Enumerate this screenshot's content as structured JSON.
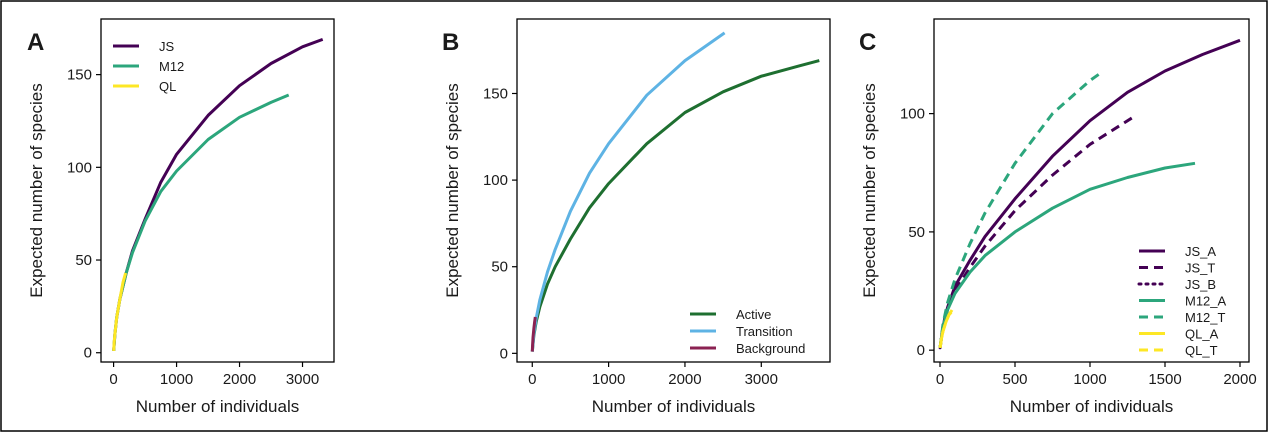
{
  "chart_data": [
    {
      "type": "line",
      "panel_label": "A",
      "xlabel": "Number of individuals",
      "ylabel": "Expected number of species",
      "xlim": [
        -200,
        3500
      ],
      "ylim": [
        -5,
        180
      ],
      "xticks": [
        0,
        1000,
        2000,
        3000
      ],
      "yticks": [
        0,
        50,
        100,
        150
      ],
      "grid": false,
      "legend_position": "top-left",
      "series": [
        {
          "name": "JS",
          "color": "#440154",
          "dash": "solid",
          "x": [
            1,
            20,
            50,
            100,
            200,
            300,
            500,
            750,
            1000,
            1500,
            2000,
            2500,
            3000,
            3320
          ],
          "y": [
            1,
            10,
            19,
            29,
            43,
            55,
            72,
            92,
            107,
            128,
            144,
            156,
            165,
            169
          ]
        },
        {
          "name": "M12",
          "color": "#2ca67c",
          "dash": "solid",
          "x": [
            1,
            20,
            50,
            100,
            200,
            300,
            500,
            750,
            1000,
            1500,
            2000,
            2500,
            2780
          ],
          "y": [
            1,
            10,
            19,
            29,
            43,
            54,
            71,
            87,
            98,
            115,
            127,
            135,
            139
          ]
        },
        {
          "name": "QL",
          "color": "#fde725",
          "dash": "solid",
          "x": [
            1,
            10,
            20,
            50,
            100,
            150,
            190
          ],
          "y": [
            1,
            6,
            10,
            19,
            29,
            38,
            43
          ]
        }
      ]
    },
    {
      "type": "line",
      "panel_label": "B",
      "xlabel": "Number of individuals",
      "ylabel": "Expected number of species",
      "xlim": [
        -200,
        3900
      ],
      "ylim": [
        -5,
        193
      ],
      "xticks": [
        0,
        1000,
        2000,
        3000
      ],
      "yticks": [
        0,
        50,
        100,
        150
      ],
      "grid": false,
      "legend_position": "bottom-right",
      "series": [
        {
          "name": "Active",
          "color": "#1e6f30",
          "dash": "solid",
          "x": [
            1,
            20,
            50,
            100,
            200,
            300,
            500,
            750,
            1000,
            1500,
            2000,
            2500,
            3000,
            3500,
            3760
          ],
          "y": [
            1,
            10,
            18,
            27,
            40,
            50,
            66,
            84,
            98,
            121,
            139,
            151,
            160,
            166,
            169
          ]
        },
        {
          "name": "Transition",
          "color": "#5eb3e4",
          "dash": "solid",
          "x": [
            1,
            20,
            50,
            100,
            200,
            300,
            500,
            750,
            1000,
            1500,
            2000,
            2520
          ],
          "y": [
            1,
            11,
            20,
            31,
            47,
            60,
            82,
            104,
            121,
            149,
            169,
            185
          ]
        },
        {
          "name": "Background",
          "color": "#8b2252",
          "dash": "solid",
          "x": [
            1,
            5,
            10,
            20,
            30,
            40
          ],
          "y": [
            1,
            5,
            9,
            14,
            18,
            21
          ]
        }
      ]
    },
    {
      "type": "line",
      "panel_label": "C",
      "xlabel": "Number of individuals",
      "ylabel": "Expected number of species",
      "xlim": [
        -40,
        2060
      ],
      "ylim": [
        -5,
        140
      ],
      "xticks": [
        0,
        500,
        1000,
        1500,
        2000
      ],
      "yticks": [
        0,
        50,
        100
      ],
      "grid": false,
      "legend_position": "bottom-right",
      "series": [
        {
          "name": "JS_A",
          "color": "#440154",
          "dash": "solid",
          "x": [
            1,
            20,
            50,
            100,
            200,
            300,
            500,
            750,
            1000,
            1250,
            1500,
            1750,
            2000
          ],
          "y": [
            1,
            10,
            18,
            27,
            38,
            48,
            64,
            82,
            97,
            109,
            118,
            125,
            131
          ]
        },
        {
          "name": "JS_T",
          "color": "#440154",
          "dash": "dash",
          "x": [
            1,
            20,
            50,
            100,
            200,
            300,
            500,
            750,
            1000,
            1300
          ],
          "y": [
            1,
            10,
            17,
            25,
            35,
            44,
            59,
            74,
            87,
            99
          ]
        },
        {
          "name": "JS_B",
          "color": "#440154",
          "dash": "dot",
          "x": [
            1,
            10,
            20,
            30,
            45
          ],
          "y": [
            1,
            6,
            10,
            13,
            17
          ]
        },
        {
          "name": "M12_A",
          "color": "#2ca67c",
          "dash": "solid",
          "x": [
            1,
            20,
            50,
            100,
            200,
            300,
            500,
            750,
            1000,
            1250,
            1500,
            1700
          ],
          "y": [
            1,
            10,
            17,
            24,
            33,
            40,
            50,
            60,
            68,
            73,
            77,
            79
          ]
        },
        {
          "name": "M12_T",
          "color": "#2ca67c",
          "dash": "dash",
          "x": [
            1,
            20,
            50,
            100,
            200,
            300,
            500,
            750,
            1000,
            1090
          ],
          "y": [
            1,
            11,
            20,
            30,
            45,
            58,
            79,
            100,
            114,
            118
          ]
        },
        {
          "name": "QL_A",
          "color": "#fde725",
          "dash": "solid",
          "x": [
            1,
            10,
            20,
            40,
            60,
            80
          ],
          "y": [
            1,
            5,
            8,
            12,
            15,
            17
          ]
        },
        {
          "name": "QL_T",
          "color": "#fde725",
          "dash": "dash",
          "x": [
            1,
            10,
            20,
            40,
            60,
            75
          ],
          "y": [
            1,
            5,
            8,
            12,
            15,
            16
          ]
        }
      ]
    }
  ]
}
